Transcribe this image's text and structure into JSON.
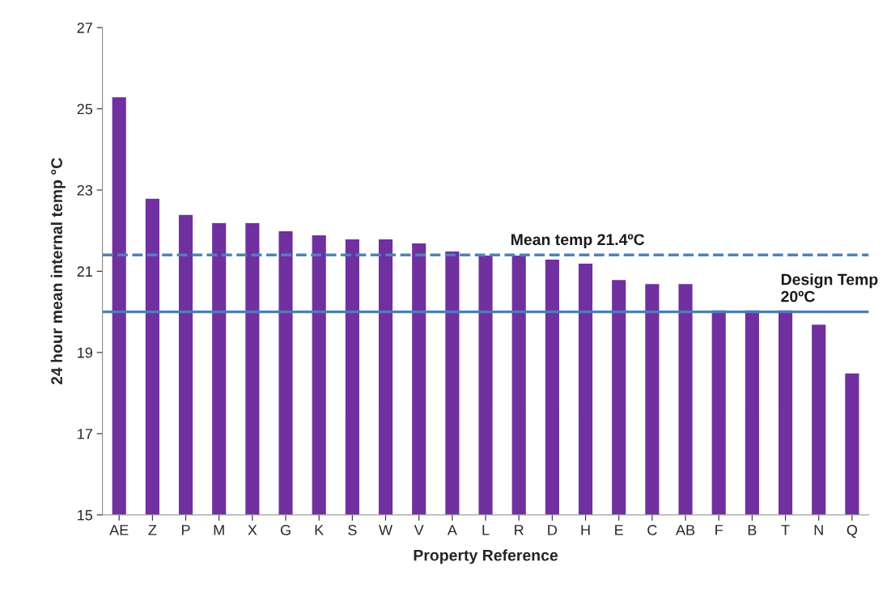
{
  "chart_data": {
    "type": "bar",
    "xlabel": "Property Reference",
    "ylabel": "24 hour mean internal temp °C",
    "categories": [
      "AE",
      "Z",
      "P",
      "M",
      "X",
      "G",
      "K",
      "S",
      "W",
      "V",
      "A",
      "L",
      "R",
      "D",
      "H",
      "E",
      "C",
      "AB",
      "F",
      "B",
      "T",
      "N",
      "Q"
    ],
    "values": [
      25.3,
      22.8,
      22.4,
      22.2,
      22.2,
      22.0,
      21.9,
      21.8,
      21.8,
      21.7,
      21.5,
      21.4,
      21.4,
      21.3,
      21.2,
      20.8,
      20.7,
      20.7,
      20.05,
      20.05,
      20.05,
      19.7,
      18.5
    ],
    "color": "#7030a0",
    "ylim": [
      15,
      27
    ],
    "yticks": [
      15,
      17,
      19,
      21,
      23,
      25,
      27
    ],
    "grid": false,
    "ref_lines": [
      {
        "axis": "y",
        "value": 21.4,
        "label": "Mean temp 21.4ºC",
        "color": "#4f81bd",
        "line_style": "dashed"
      },
      {
        "axis": "y",
        "value": 20,
        "label": "Design Temp\n20ºC",
        "color": "#4a7ebb",
        "line_style": "solid"
      }
    ]
  }
}
